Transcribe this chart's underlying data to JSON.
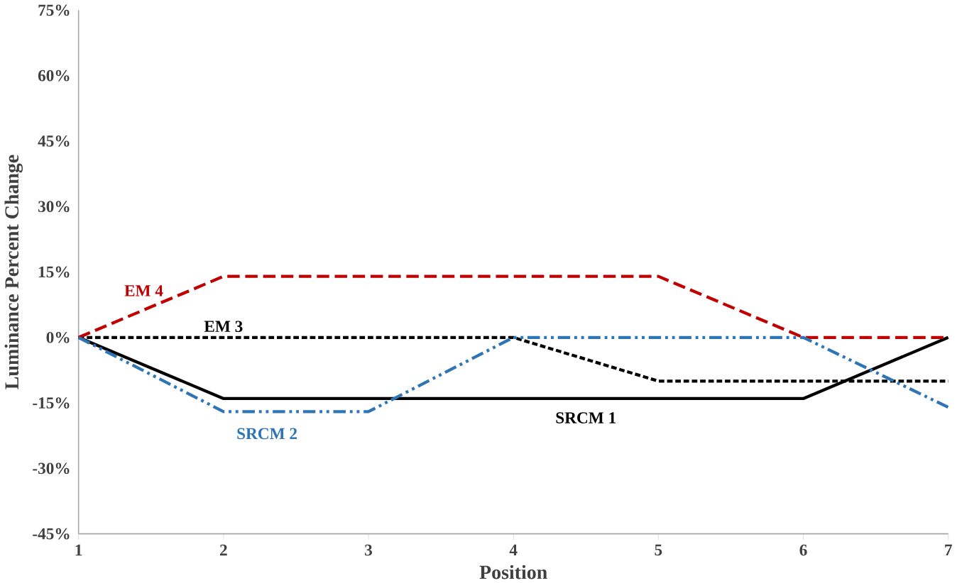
{
  "chart_data": {
    "type": "line",
    "xlabel": "Position",
    "ylabel": "Luminance Percent Change",
    "x": [
      1,
      2,
      3,
      4,
      5,
      6,
      7
    ],
    "series": [
      {
        "name": "SRCM 1",
        "color": "#000000",
        "line_style": "solid",
        "values": [
          0,
          -14,
          -14,
          -14,
          -14,
          -14,
          0
        ]
      },
      {
        "name": "EM 3",
        "color": "#000000",
        "line_style": "dotted",
        "values": [
          0,
          0,
          0,
          0,
          -10,
          -10,
          -10
        ]
      },
      {
        "name": "EM 4",
        "color": "#c00000",
        "line_style": "dashed",
        "values": [
          0,
          14,
          14,
          14,
          14,
          0,
          0
        ]
      },
      {
        "name": "SRCM 2",
        "color": "#2e75b6",
        "line_style": "dashdot",
        "values": [
          0,
          -17,
          -17,
          0,
          0,
          0,
          -16
        ]
      }
    ],
    "xlim": [
      1,
      7
    ],
    "xticks": [
      1,
      2,
      3,
      4,
      5,
      6,
      7
    ],
    "ylim": [
      -45,
      75
    ],
    "yticks": [
      {
        "value": -45,
        "label": "-45%"
      },
      {
        "value": -30,
        "label": "-30%"
      },
      {
        "value": -15,
        "label": "-15%"
      },
      {
        "value": 0,
        "label": "0%"
      },
      {
        "value": 15,
        "label": "15%"
      },
      {
        "value": 30,
        "label": "30%"
      },
      {
        "value": 45,
        "label": "45%"
      },
      {
        "value": 60,
        "label": "60%"
      },
      {
        "value": 75,
        "label": "75%"
      }
    ],
    "grid": false,
    "marker": "none"
  }
}
